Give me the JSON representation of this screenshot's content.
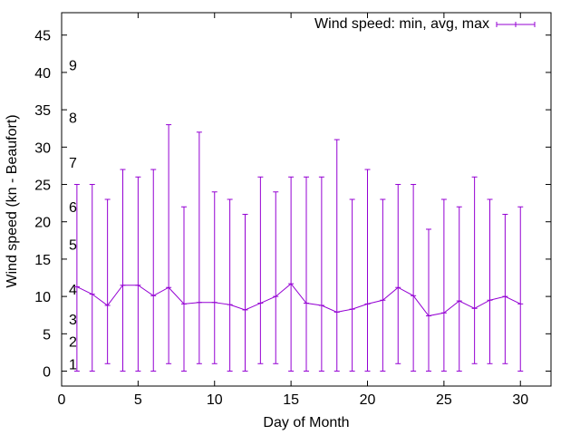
{
  "chart_data": {
    "type": "line",
    "xlabel": "Day of Month",
    "ylabel": "Wind speed (kn - Beaufort)",
    "xlim": [
      0,
      32
    ],
    "ylim": [
      -2,
      48
    ],
    "x_ticks": [
      "0",
      "5",
      "10",
      "15",
      "20",
      "25",
      "30"
    ],
    "y_ticks": [
      "0",
      "5",
      "10",
      "15",
      "20",
      "25",
      "30",
      "35",
      "40",
      "45"
    ],
    "beaufort_labels": [
      {
        "label": "1",
        "y": 1
      },
      {
        "label": "2",
        "y": 4
      },
      {
        "label": "3",
        "y": 7
      },
      {
        "label": "4",
        "y": 11
      },
      {
        "label": "5",
        "y": 17
      },
      {
        "label": "6",
        "y": 22
      },
      {
        "label": "7",
        "y": 28
      },
      {
        "label": "8",
        "y": 34
      },
      {
        "label": "9",
        "y": 41
      }
    ],
    "grid": false,
    "legend_position": "top-right",
    "series": [
      {
        "name": "Wind speed: min, avg, max",
        "color": "#9400d3",
        "x": [
          1,
          2,
          3,
          4,
          5,
          6,
          7,
          8,
          9,
          10,
          11,
          12,
          13,
          14,
          15,
          16,
          17,
          18,
          19,
          20,
          21,
          22,
          23,
          24,
          25,
          26,
          27,
          28,
          29,
          30
        ],
        "min": [
          0,
          0,
          1,
          0,
          0,
          0,
          1,
          0,
          1,
          1,
          0,
          0,
          1,
          1,
          0,
          0,
          0,
          0,
          0,
          0,
          0,
          1,
          0,
          0,
          0,
          0,
          1,
          1,
          1,
          0
        ],
        "avg": [
          11.3,
          10.3,
          8.8,
          11.5,
          11.5,
          10.1,
          11.2,
          9.0,
          9.2,
          9.2,
          8.9,
          8.2,
          9.1,
          10.0,
          11.7,
          9.1,
          8.8,
          7.9,
          8.3,
          9.0,
          9.5,
          11.2,
          10.1,
          7.4,
          7.8,
          9.4,
          8.4,
          9.5,
          10.0,
          9.0
        ],
        "max": [
          25,
          25,
          23,
          27,
          26,
          27,
          33,
          22,
          32,
          24,
          23,
          21,
          26,
          24,
          26,
          26,
          26,
          31,
          23,
          27,
          23,
          25,
          25,
          19,
          23,
          22,
          26,
          23,
          21,
          22
        ]
      }
    ]
  }
}
